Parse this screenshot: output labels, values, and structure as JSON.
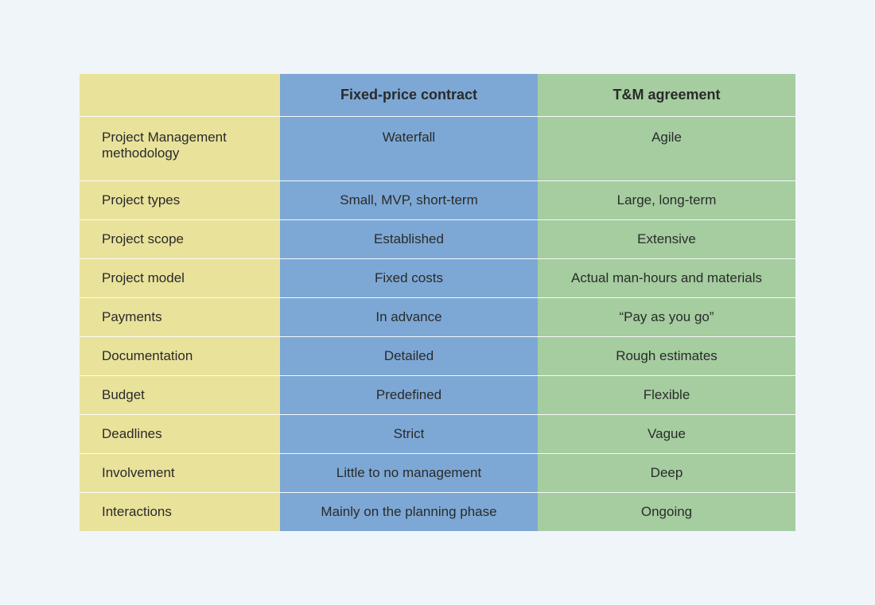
{
  "table": {
    "type": "table",
    "background_color": "#f0f5fa",
    "text_color": "#2a2a2a",
    "row_divider_color": "#ffffff",
    "header_fontsize": 18,
    "header_fontweight": 700,
    "cell_fontsize": 17,
    "columns": {
      "label": {
        "header": "",
        "bg": "#e9e29b",
        "align": "left",
        "width_pct": 28
      },
      "fixed": {
        "header": "Fixed-price contract",
        "bg": "#7da8d5",
        "align": "center",
        "width_pct": 36
      },
      "tm": {
        "header": "T&M agreement",
        "bg": "#a5cda0",
        "align": "center",
        "width_pct": 36
      }
    },
    "rows": [
      {
        "label": "Project Management methodology",
        "fixed": "Waterfall",
        "tm": "Agile"
      },
      {
        "label": "Project types",
        "fixed": "Small, MVP, short-term",
        "tm": "Large, long-term"
      },
      {
        "label": "Project scope",
        "fixed": "Established",
        "tm": "Extensive"
      },
      {
        "label": "Project model",
        "fixed": "Fixed costs",
        "tm": "Actual man-hours and materials"
      },
      {
        "label": "Payments",
        "fixed": "In advance",
        "tm": "“Pay as you go”"
      },
      {
        "label": "Documentation",
        "fixed": "Detailed",
        "tm": "Rough estimates"
      },
      {
        "label": "Budget",
        "fixed": "Predefined",
        "tm": "Flexible"
      },
      {
        "label": "Deadlines",
        "fixed": "Strict",
        "tm": "Vague"
      },
      {
        "label": "Involvement",
        "fixed": "Little to no management",
        "tm": "Deep"
      },
      {
        "label": "Interactions",
        "fixed": "Mainly on the planning phase",
        "tm": "Ongoing"
      }
    ]
  }
}
